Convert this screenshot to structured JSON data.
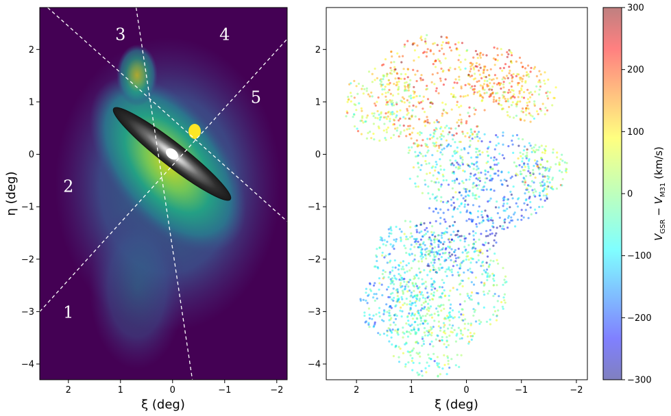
{
  "chart_data": [
    {
      "type": "heatmap",
      "title": "",
      "xlabel": "ξ (deg)",
      "ylabel": "η (deg)",
      "xlim": [
        2.55,
        -2.2
      ],
      "ylim": [
        -4.3,
        2.8
      ],
      "xticks": [
        2,
        1,
        0,
        -1,
        -2
      ],
      "xtick_labels": [
        "2",
        "1",
        "0",
        "−1",
        "−2"
      ],
      "yticks": [
        2,
        1,
        0,
        -1,
        -2,
        -3,
        -4
      ],
      "ytick_labels": [
        "2",
        "1",
        "0",
        "−1",
        "−2",
        "−3",
        "−4"
      ],
      "colormap": "viridis",
      "background_color": "#440154",
      "disk_overlay": {
        "center": [
          0,
          0
        ],
        "semi_major_deg": 1.4,
        "semi_minor_deg": 0.2,
        "position_angle_deg": 38
      },
      "region_boundaries": [
        {
          "from": [
            2.55,
            -3.0
          ],
          "to": [
            -2.2,
            2.2
          ]
        },
        {
          "from": [
            2.4,
            2.8
          ],
          "to": [
            -2.2,
            -1.28
          ]
        },
        {
          "from": [
            0.7,
            2.8
          ],
          "to": [
            -0.38,
            -4.3
          ]
        }
      ],
      "region_labels": [
        {
          "text": "1",
          "xi": 2.0,
          "eta": -3.0
        },
        {
          "text": "2",
          "xi": 2.0,
          "eta": -0.6
        },
        {
          "text": "3",
          "xi": 1.0,
          "eta": 2.3
        },
        {
          "text": "4",
          "xi": -1.0,
          "eta": 2.3
        },
        {
          "text": "5",
          "xi": -1.6,
          "eta": 1.1
        }
      ]
    },
    {
      "type": "scatter",
      "title": "",
      "xlabel": "ξ (deg)",
      "ylabel": "",
      "xlim": [
        2.55,
        -2.2
      ],
      "ylim": [
        -4.3,
        2.8
      ],
      "xticks": [
        2,
        1,
        0,
        -1,
        -2
      ],
      "xtick_labels": [
        "2",
        "1",
        "0",
        "−1",
        "−2"
      ],
      "yticks": [
        2,
        1,
        0,
        -1,
        -2,
        -3,
        -4
      ],
      "ytick_labels": [
        "2",
        "1",
        "0",
        "−1",
        "−2",
        "−3",
        "−4"
      ],
      "color_by": "V_GSR − V_M31 (km/s)",
      "colormap": "jet",
      "alpha": 0.5,
      "marker_size": 2,
      "clrange": [
        -300,
        300
      ],
      "fields": [
        {
          "center": [
            0.6,
            1.2
          ],
          "radius": 1.1,
          "mean_v": 150
        },
        {
          "center": [
            1.55,
            0.95
          ],
          "radius": 0.7,
          "mean_v": 40
        },
        {
          "center": [
            -0.55,
            1.5
          ],
          "radius": 0.55,
          "mean_v": 160
        },
        {
          "center": [
            -1.1,
            1.15
          ],
          "radius": 0.55,
          "mean_v": 110
        },
        {
          "center": [
            0.3,
            -0.15
          ],
          "radius": 0.8,
          "mean_v": -40
        },
        {
          "center": [
            -0.6,
            -0.5
          ],
          "radius": 0.95,
          "mean_v": -170
        },
        {
          "center": [
            -1.35,
            -0.3
          ],
          "radius": 0.5,
          "mean_v": 0
        },
        {
          "center": [
            0.2,
            -1.6
          ],
          "radius": 0.75,
          "mean_v": -200
        },
        {
          "center": [
            0.95,
            -2.0
          ],
          "radius": 0.75,
          "mean_v": -80
        },
        {
          "center": [
            0.3,
            -2.55
          ],
          "radius": 1.05,
          "mean_v": -30
        },
        {
          "center": [
            0.65,
            -3.45
          ],
          "radius": 0.8,
          "mean_v": -20
        },
        {
          "center": [
            1.3,
            -2.85
          ],
          "radius": 0.65,
          "mean_v": -110
        }
      ]
    },
    {
      "type": "colorbar",
      "label": "V_GSR − V_M31 (km/s)",
      "label_parts": {
        "v": "V",
        "sub1": "GSR",
        "minus": " − ",
        "v2": "V",
        "sub2": "M31",
        "unit": " (km/s)"
      },
      "range": [
        -300,
        300
      ],
      "ticks": [
        300,
        200,
        100,
        0,
        -100,
        -200,
        -300
      ],
      "tick_labels": [
        "300",
        "200",
        "100",
        "0",
        "−100",
        "−200",
        "−300"
      ],
      "colormap": "jet",
      "alpha": 0.5
    }
  ]
}
